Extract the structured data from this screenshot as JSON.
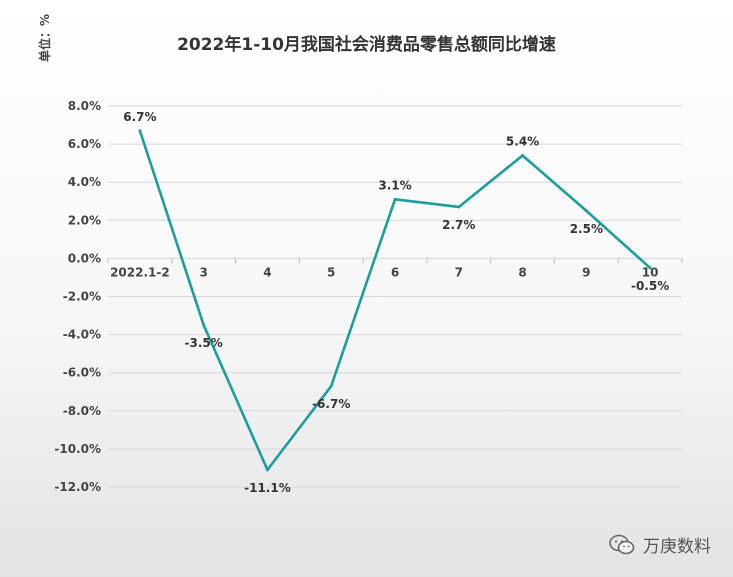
{
  "chart_data": {
    "type": "line",
    "title": "2022年1-10月我国社会消费品零售总额同比增速",
    "unit_label": "单位：%",
    "categories": [
      "2022.1-2",
      "3",
      "4",
      "5",
      "6",
      "7",
      "8",
      "9",
      "10"
    ],
    "series": [
      {
        "values": [
          6.7,
          -3.5,
          -11.1,
          -6.7,
          3.1,
          2.7,
          5.4,
          2.5,
          -0.5
        ],
        "labels": [
          "6.7%",
          "-3.5%",
          "-11.1%",
          "-6.7%",
          "3.1%",
          "2.7%",
          "5.4%",
          "2.5%",
          "-0.5%"
        ],
        "color": "#1a9e9e"
      }
    ],
    "ylim": [
      -12,
      8
    ],
    "yticks": [
      8,
      6,
      4,
      2,
      0,
      -2,
      -4,
      -6,
      -8,
      -10,
      -12
    ],
    "ytick_labels": [
      "8.0%",
      "6.0%",
      "4.0%",
      "2.0%",
      "0.0%",
      "-2.0%",
      "-4.0%",
      "-6.0%",
      "-8.0%",
      "-10.0%",
      "-12.0%"
    ],
    "grid": true
  },
  "watermark": {
    "text": "万庚数料",
    "icon": "wechat-icon"
  }
}
